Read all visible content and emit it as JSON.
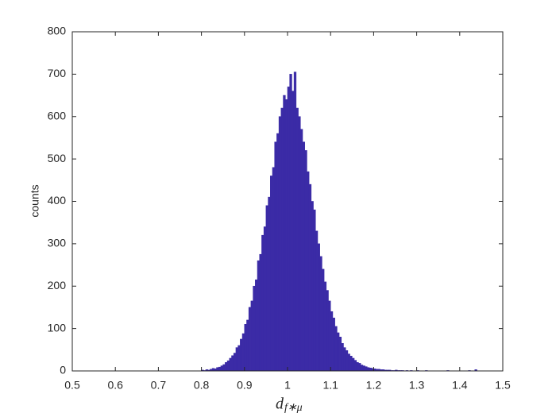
{
  "chart_data": {
    "type": "histogram",
    "x_label": "d",
    "x_label_subscript": "f∗μ",
    "y_label": "counts",
    "color": "#3b2ba6",
    "bins": [
      0.8,
      0.805,
      0.81,
      0.815,
      0.82,
      0.825,
      0.83,
      0.835,
      0.84,
      0.845,
      0.85,
      0.855,
      0.86,
      0.865,
      0.87,
      0.875,
      0.88,
      0.885,
      0.89,
      0.895,
      0.9,
      0.905,
      0.91,
      0.915,
      0.92,
      0.925,
      0.93,
      0.935,
      0.94,
      0.945,
      0.95,
      0.955,
      0.96,
      0.965,
      0.97,
      0.975,
      0.98,
      0.985,
      0.99,
      0.995,
      1,
      1.005,
      1.01,
      1.015,
      1.02,
      1.025,
      1.03,
      1.035,
      1.04,
      1.045,
      1.05,
      1.055,
      1.06,
      1.065,
      1.07,
      1.075,
      1.08,
      1.085,
      1.09,
      1.095,
      1.1,
      1.105,
      1.11,
      1.115,
      1.12,
      1.125,
      1.13,
      1.135,
      1.14,
      1.145,
      1.15,
      1.155,
      1.16,
      1.165,
      1.17,
      1.175,
      1.18,
      1.185,
      1.19,
      1.195,
      1.2,
      1.205,
      1.21,
      1.215,
      1.22,
      1.225,
      1.23,
      1.235,
      1.24,
      1.245,
      1.25,
      1.255,
      1.26,
      1.265,
      1.27,
      1.275,
      1.28,
      1.285,
      1.29,
      1.295,
      1.3,
      1.305,
      1.31,
      1.315,
      1.32,
      1.325,
      1.33,
      1.335,
      1.34,
      1.345,
      1.35,
      1.355,
      1.36,
      1.365,
      1.37,
      1.375,
      1.38,
      1.385,
      1.39,
      1.395,
      1.4,
      1.405,
      1.41,
      1.415,
      1.42,
      1.425,
      1.43,
      1.435,
      1.44,
      1.445,
      1.45
    ],
    "counts": [
      2,
      1,
      3,
      2,
      4,
      6,
      5,
      8,
      9,
      12,
      15,
      20,
      24,
      30,
      36,
      42,
      55,
      60,
      75,
      88,
      110,
      120,
      150,
      165,
      200,
      215,
      260,
      275,
      320,
      340,
      390,
      410,
      460,
      480,
      540,
      560,
      600,
      620,
      650,
      640,
      670,
      700,
      660,
      705,
      620,
      600,
      570,
      540,
      520,
      470,
      440,
      400,
      380,
      330,
      300,
      270,
      240,
      210,
      190,
      165,
      140,
      125,
      105,
      90,
      80,
      65,
      55,
      48,
      40,
      35,
      30,
      25,
      20,
      18,
      14,
      12,
      10,
      8,
      7,
      6,
      5,
      4,
      4,
      3,
      3,
      2,
      2,
      2,
      1,
      1,
      2,
      1,
      1,
      1,
      0,
      1,
      0,
      1,
      0,
      0,
      1,
      0,
      0,
      0,
      1,
      0,
      0,
      0,
      0,
      0,
      0,
      0,
      0,
      0,
      1,
      0,
      0,
      0,
      0,
      0,
      0,
      0,
      0,
      0,
      1,
      0,
      0,
      3,
      0,
      0
    ],
    "xlim": [
      0.5,
      1.5
    ],
    "xticks": [
      0.5,
      0.6,
      0.7,
      0.8,
      0.9,
      1,
      1.1,
      1.2,
      1.3,
      1.4,
      1.5
    ],
    "ylim": [
      0,
      800
    ],
    "yticks": [
      0,
      100,
      200,
      300,
      400,
      500,
      600,
      700,
      800
    ]
  }
}
